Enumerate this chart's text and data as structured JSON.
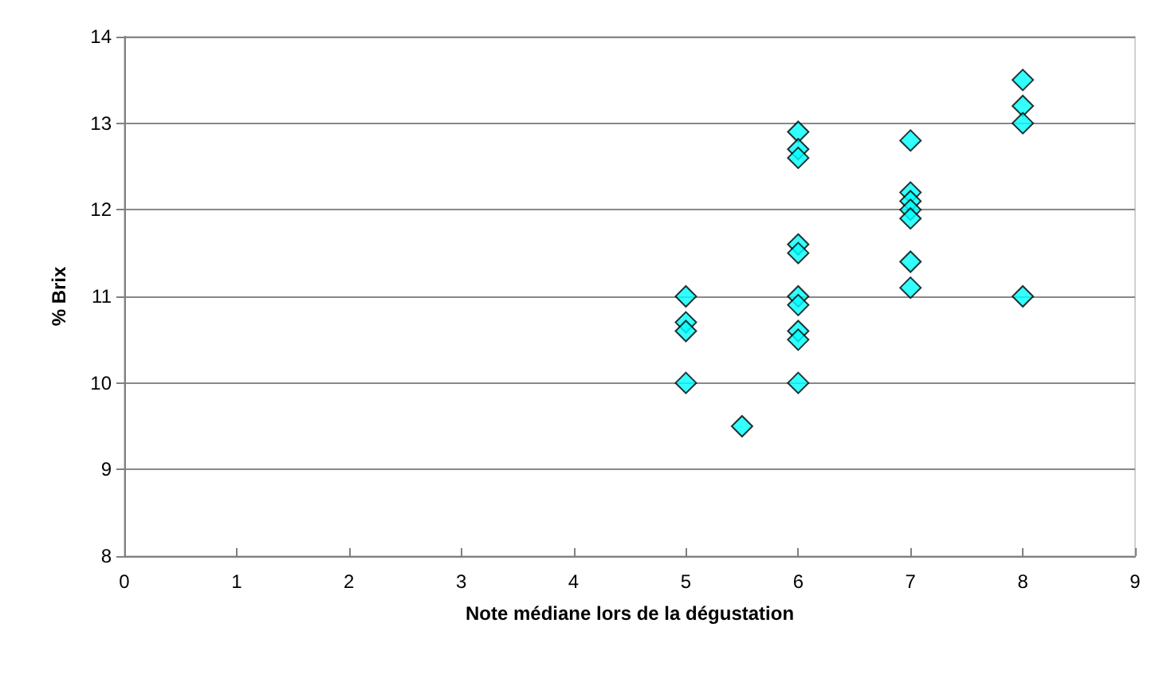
{
  "chart_data": {
    "type": "scatter",
    "xlabel": "Note médiane lors de la dégustation",
    "ylabel": "% Brix",
    "x": [
      5,
      5,
      5,
      5,
      5.5,
      6,
      6,
      6,
      6,
      6,
      6,
      6,
      6,
      6,
      6,
      7,
      7,
      7,
      7,
      7,
      7,
      7,
      8,
      8,
      8,
      8
    ],
    "values": [
      11.0,
      10.7,
      10.6,
      10.0,
      9.5,
      12.9,
      12.7,
      12.6,
      11.6,
      11.5,
      11.0,
      10.9,
      10.6,
      10.5,
      10.0,
      12.8,
      12.2,
      12.1,
      12.0,
      11.9,
      11.4,
      11.1,
      13.5,
      13.2,
      13.0,
      11.0
    ],
    "color": "#00ffff",
    "marker": "diamond",
    "xlim": [
      0,
      9
    ],
    "xticks": [
      0,
      1,
      2,
      3,
      4,
      5,
      6,
      7,
      8,
      9
    ],
    "ylim": [
      8,
      14
    ],
    "yticks": [
      8,
      9,
      10,
      11,
      12,
      13,
      14
    ],
    "grid": "y"
  }
}
